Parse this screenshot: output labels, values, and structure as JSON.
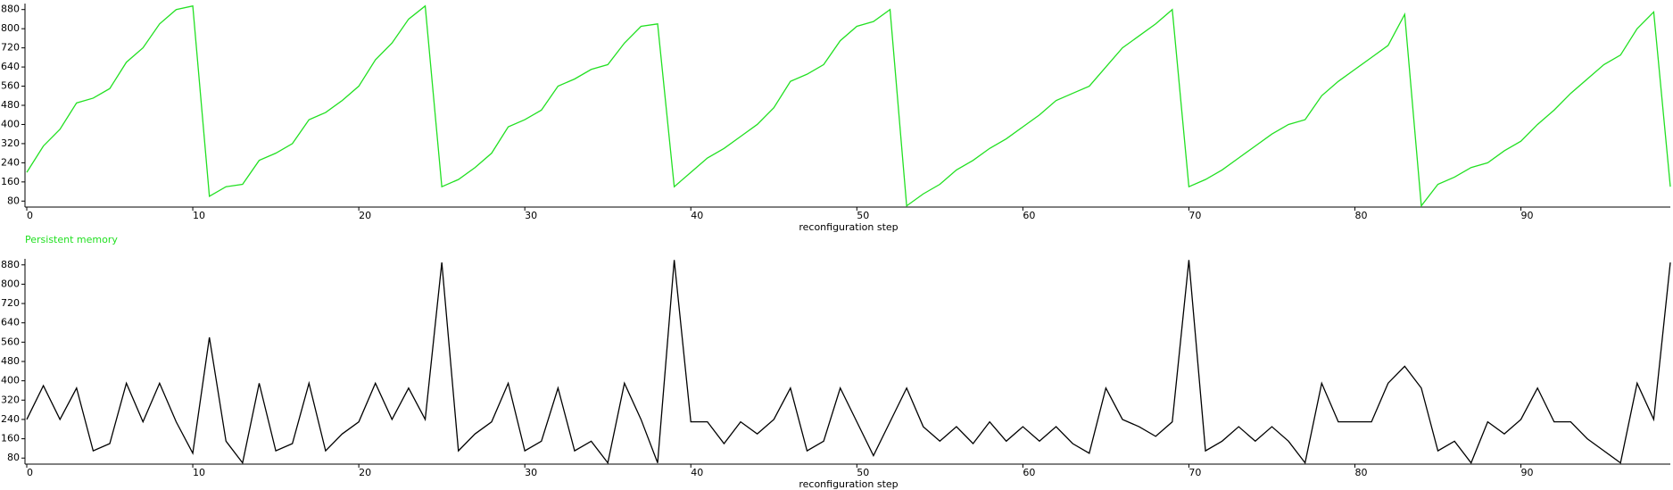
{
  "chart_data": [
    {
      "type": "line",
      "x_label": "reconfiguration step",
      "legend": "below-left",
      "xlim": [
        0,
        99
      ],
      "xticks": [
        0,
        10,
        20,
        30,
        40,
        50,
        60,
        70,
        80,
        90
      ],
      "ylim": [
        55,
        905
      ],
      "yticks": [
        80,
        160,
        240,
        320,
        400,
        480,
        560,
        640,
        720,
        800,
        880
      ],
      "x": [
        0,
        1,
        2,
        3,
        4,
        5,
        6,
        7,
        8,
        9,
        10,
        11,
        12,
        13,
        14,
        15,
        16,
        17,
        18,
        19,
        20,
        21,
        22,
        23,
        24,
        25,
        26,
        27,
        28,
        29,
        30,
        31,
        32,
        33,
        34,
        35,
        36,
        37,
        38,
        39,
        40,
        41,
        42,
        43,
        44,
        45,
        46,
        47,
        48,
        49,
        50,
        51,
        52,
        53,
        54,
        55,
        56,
        57,
        58,
        59,
        60,
        61,
        62,
        63,
        64,
        65,
        66,
        67,
        68,
        69,
        70,
        71,
        72,
        73,
        74,
        75,
        76,
        77,
        78,
        79,
        80,
        81,
        82,
        83,
        84,
        85,
        86,
        87,
        88,
        89,
        90,
        91,
        92,
        93,
        94,
        95,
        96,
        97,
        98,
        99
      ],
      "series": [
        {
          "name": "Persistent memory",
          "color": "#22e022",
          "values": [
            200,
            310,
            380,
            490,
            510,
            550,
            660,
            720,
            820,
            880,
            895,
            100,
            140,
            150,
            250,
            280,
            320,
            420,
            450,
            500,
            560,
            670,
            740,
            840,
            895,
            140,
            170,
            220,
            280,
            390,
            420,
            460,
            560,
            590,
            630,
            650,
            740,
            810,
            820,
            140,
            200,
            260,
            300,
            350,
            400,
            470,
            580,
            610,
            650,
            750,
            810,
            830,
            880,
            60,
            110,
            150,
            210,
            250,
            300,
            340,
            390,
            440,
            500,
            530,
            560,
            640,
            720,
            770,
            820,
            880,
            140,
            170,
            210,
            260,
            310,
            360,
            400,
            420,
            520,
            580,
            630,
            680,
            730,
            860,
            60,
            150,
            180,
            220,
            240,
            290,
            330,
            400,
            460,
            530,
            590,
            650,
            690,
            800,
            870,
            140
          ]
        }
      ]
    },
    {
      "type": "line",
      "x_label": "reconfiguration step",
      "xlim": [
        0,
        99
      ],
      "xticks": [
        0,
        10,
        20,
        30,
        40,
        50,
        60,
        70,
        80,
        90
      ],
      "ylim": [
        55,
        905
      ],
      "yticks": [
        80,
        160,
        240,
        320,
        400,
        480,
        560,
        640,
        720,
        800,
        880
      ],
      "x": [
        0,
        1,
        2,
        3,
        4,
        5,
        6,
        7,
        8,
        9,
        10,
        11,
        12,
        13,
        14,
        15,
        16,
        17,
        18,
        19,
        20,
        21,
        22,
        23,
        24,
        25,
        26,
        27,
        28,
        29,
        30,
        31,
        32,
        33,
        34,
        35,
        36,
        37,
        38,
        39,
        40,
        41,
        42,
        43,
        44,
        45,
        46,
        47,
        48,
        49,
        50,
        51,
        52,
        53,
        54,
        55,
        56,
        57,
        58,
        59,
        60,
        61,
        62,
        63,
        64,
        65,
        66,
        67,
        68,
        69,
        70,
        71,
        72,
        73,
        74,
        75,
        76,
        77,
        78,
        79,
        80,
        81,
        82,
        83,
        84,
        85,
        86,
        87,
        88,
        89,
        90,
        91,
        92,
        93,
        94,
        95,
        96,
        97,
        98,
        99
      ],
      "series": [
        {
          "color": "#000000",
          "values": [
            240,
            380,
            240,
            370,
            110,
            140,
            390,
            230,
            390,
            230,
            100,
            580,
            150,
            60,
            390,
            110,
            140,
            390,
            110,
            180,
            230,
            390,
            240,
            370,
            240,
            890,
            110,
            180,
            230,
            390,
            110,
            150,
            370,
            110,
            150,
            60,
            390,
            240,
            60,
            900,
            230,
            230,
            140,
            230,
            180,
            240,
            370,
            110,
            150,
            370,
            230,
            90,
            230,
            370,
            210,
            150,
            210,
            140,
            230,
            150,
            210,
            150,
            210,
            140,
            100,
            370,
            240,
            210,
            170,
            230,
            900,
            110,
            150,
            210,
            150,
            210,
            150,
            60,
            390,
            230,
            230,
            230,
            390,
            460,
            370,
            110,
            150,
            60,
            230,
            180,
            240,
            370,
            230,
            230,
            160,
            110,
            60,
            390,
            240,
            890
          ]
        }
      ]
    }
  ]
}
